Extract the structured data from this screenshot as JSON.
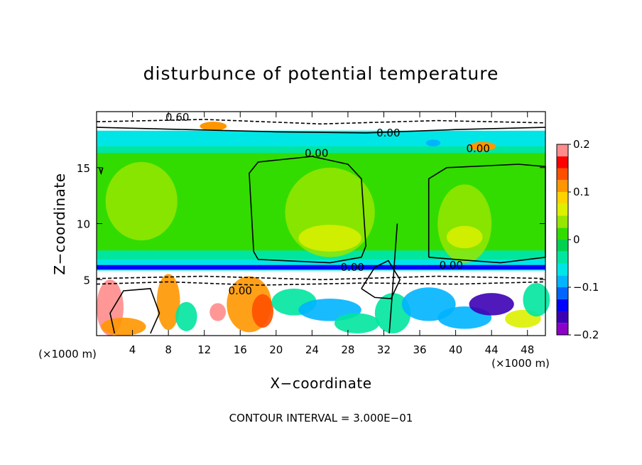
{
  "chart_data": {
    "type": "heatmap",
    "title": "disturbunce of potential temperature",
    "xlabel": "X−coordinate",
    "ylabel": "Z−coordinate",
    "x_unit": "(×1000 m)",
    "z_unit": "(×1000 m)",
    "footer": "CONTOUR INTERVAL = 3.000E−01",
    "xlim": [
      0,
      50
    ],
    "zlim": [
      0,
      20
    ],
    "x_ticks": [
      4,
      8,
      12,
      16,
      20,
      24,
      28,
      32,
      36,
      40,
      44,
      48
    ],
    "z_ticks": [
      5,
      10,
      15
    ],
    "colorbar": {
      "min": -0.2,
      "max": 0.2,
      "ticks": [
        {
          "value": 0.2,
          "label": "0.2"
        },
        {
          "value": 0.1,
          "label": "0.1"
        },
        {
          "value": 0,
          "label": "0"
        },
        {
          "value": -0.1,
          "label": "−0.1"
        },
        {
          "value": -0.2,
          "label": "−0.2"
        }
      ],
      "colors": [
        "#8a00c8",
        "#3c00b4",
        "#0000ff",
        "#0064ff",
        "#00b4ff",
        "#00e6e6",
        "#00e6a0",
        "#00d250",
        "#32dc00",
        "#96e600",
        "#dcf000",
        "#ffd200",
        "#ff9600",
        "#ff5000",
        "#ff0000",
        "#ff8c8c"
      ]
    },
    "contour_labels": [
      {
        "text": "0.60",
        "x": 9,
        "z": 19.5
      },
      {
        "text": "0.00",
        "x": 32.5,
        "z": 18.1
      },
      {
        "text": "0.00",
        "x": 42.5,
        "z": 16.7
      },
      {
        "text": "0.00",
        "x": 24.5,
        "z": 16.3
      },
      {
        "text": "0.00",
        "x": 28.5,
        "z": 6.1
      },
      {
        "text": "0.00",
        "x": 39.5,
        "z": 6.3
      },
      {
        "text": "0.00",
        "x": 16,
        "z": 4.0
      }
    ],
    "regions": [
      {
        "z": [
          18.3,
          20
        ],
        "value": "mixed"
      },
      {
        "z": [
          16.6,
          18.3
        ],
        "value": -0.07
      },
      {
        "z": [
          6.8,
          16.6
        ],
        "value": 0.01
      },
      {
        "z": [
          5.8,
          6.8
        ],
        "value": -0.06
      },
      {
        "z": [
          0,
          5.8
        ],
        "value": "mixed"
      }
    ]
  }
}
